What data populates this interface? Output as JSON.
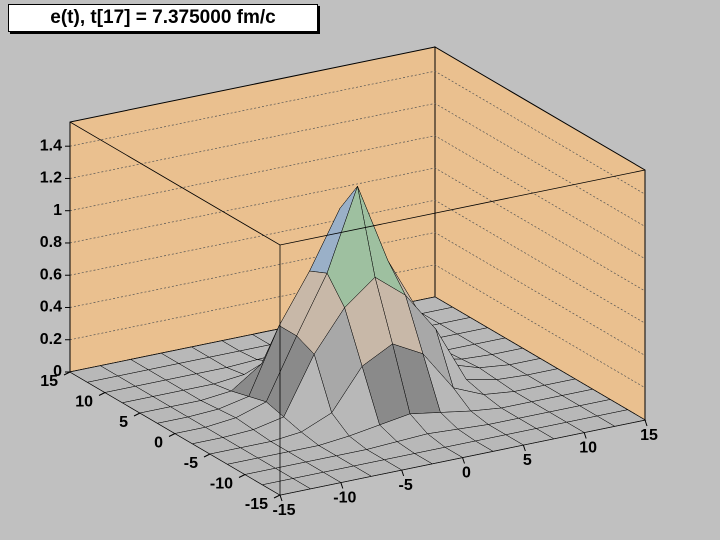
{
  "chart_data": {
    "type": "surface3d",
    "title": "e(t), t[17] = 7.375000 fm/c",
    "x": [
      -15,
      -12.5,
      -10,
      -7.5,
      -5,
      -2.5,
      0,
      2.5,
      5,
      7.5,
      10,
      12.5,
      15
    ],
    "y": [
      -15,
      -12.5,
      -10,
      -7.5,
      -5,
      -2.5,
      0,
      2.5,
      5,
      7.5,
      10,
      12.5,
      15
    ],
    "z": [
      [
        0,
        0,
        0,
        0,
        0,
        0,
        0,
        0,
        0,
        0,
        0,
        0,
        0
      ],
      [
        0,
        0,
        0,
        0,
        0,
        0,
        0,
        0,
        0,
        0,
        0,
        0,
        0
      ],
      [
        0,
        0,
        0,
        0,
        0,
        0.01,
        0.02,
        0.01,
        0,
        0,
        0,
        0,
        0
      ],
      [
        0,
        0,
        0,
        0,
        0.02,
        0.05,
        0.08,
        0.05,
        0.02,
        0,
        0,
        0,
        0
      ],
      [
        0,
        0,
        0,
        0.02,
        0.1,
        0.35,
        0.45,
        0.35,
        0.1,
        0.02,
        0,
        0,
        0
      ],
      [
        0,
        0,
        0.01,
        0.05,
        0.4,
        0.65,
        0.8,
        0.65,
        0.4,
        0.05,
        0.01,
        0,
        0
      ],
      [
        0,
        0,
        0.02,
        0.08,
        0.45,
        0.8,
        1.3,
        0.8,
        0.45,
        0.08,
        0.02,
        0,
        0
      ],
      [
        0,
        0,
        0.01,
        0.05,
        0.45,
        0.75,
        1.1,
        0.75,
        0.45,
        0.05,
        0.01,
        0,
        0
      ],
      [
        0,
        0,
        0,
        0.02,
        0.15,
        0.45,
        0.6,
        0.45,
        0.15,
        0.02,
        0,
        0,
        0
      ],
      [
        0,
        0,
        0,
        0,
        0.02,
        0.06,
        0.1,
        0.06,
        0.02,
        0,
        0,
        0,
        0
      ],
      [
        0,
        0,
        0,
        0,
        0,
        0.01,
        0.02,
        0.01,
        0,
        0,
        0,
        0,
        0
      ],
      [
        0,
        0,
        0,
        0,
        0,
        0,
        0,
        0,
        0,
        0,
        0,
        0,
        0
      ],
      [
        0,
        0,
        0,
        0,
        0,
        0,
        0,
        0,
        0,
        0,
        0,
        0,
        0
      ]
    ],
    "xlim": [
      -15,
      15
    ],
    "ylim": [
      -15,
      15
    ],
    "zlim": [
      0,
      1.55
    ],
    "xticks": [
      -15,
      -10,
      -5,
      0,
      5,
      10,
      15
    ],
    "yticks": [
      -15,
      -10,
      -5,
      0,
      5,
      10,
      15
    ],
    "zticks": [
      0,
      0.2,
      0.4,
      0.6,
      0.8,
      1,
      1.2,
      1.4
    ],
    "grid": true,
    "wall_color": "#eac08f",
    "palette": [
      "#b8b8b8",
      "#8a8a8a",
      "#a8a8a8",
      "#c8b8a8",
      "#8c6a5a",
      "#9ec0a0",
      "#9ab0c8",
      "#d8d890",
      "#b070b0",
      "#e01010"
    ]
  }
}
